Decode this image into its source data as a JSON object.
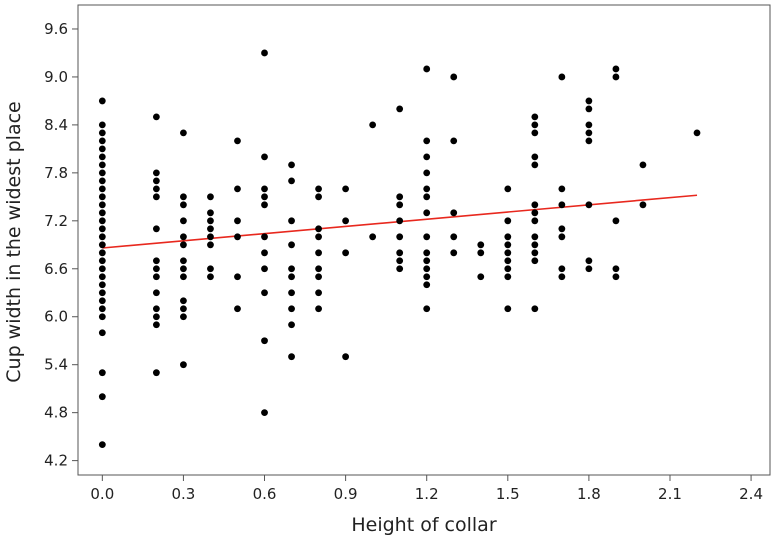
{
  "chart_data": {
    "type": "scatter",
    "title": "",
    "xlabel": "Height of collar",
    "ylabel": "Cup width in the widest place",
    "xlim": [
      -0.09,
      2.47
    ],
    "ylim": [
      4.02,
      9.9
    ],
    "xticks": [
      0.0,
      0.3,
      0.6,
      0.9,
      1.2,
      1.5,
      1.8,
      2.1,
      2.4
    ],
    "yticks": [
      4.2,
      4.8,
      5.4,
      6.0,
      6.6,
      7.2,
      7.8,
      8.4,
      9.0,
      9.6
    ],
    "xtick_labels": [
      "0.0",
      "0.3",
      "0.6",
      "0.9",
      "1.2",
      "1.5",
      "1.8",
      "2.1",
      "2.4"
    ],
    "ytick_labels": [
      "4.2",
      "4.8",
      "5.4",
      "6.0",
      "6.6",
      "7.2",
      "7.8",
      "8.4",
      "9.0",
      "9.6"
    ],
    "grid": false,
    "legend": "none",
    "point_color": "#000000",
    "series": [
      {
        "points": [
          [
            0.0,
            8.7
          ],
          [
            0.0,
            8.4
          ],
          [
            0.0,
            8.3
          ],
          [
            0.0,
            8.2
          ],
          [
            0.0,
            8.1
          ],
          [
            0.0,
            8.0
          ],
          [
            0.0,
            7.9
          ],
          [
            0.0,
            7.8
          ],
          [
            0.0,
            7.7
          ],
          [
            0.0,
            7.6
          ],
          [
            0.0,
            7.5
          ],
          [
            0.0,
            7.4
          ],
          [
            0.0,
            7.3
          ],
          [
            0.0,
            7.2
          ],
          [
            0.0,
            7.1
          ],
          [
            0.0,
            7.0
          ],
          [
            0.0,
            6.9
          ],
          [
            0.0,
            6.8
          ],
          [
            0.0,
            6.7
          ],
          [
            0.0,
            6.6
          ],
          [
            0.0,
            6.5
          ],
          [
            0.0,
            6.4
          ],
          [
            0.0,
            6.3
          ],
          [
            0.0,
            6.2
          ],
          [
            0.0,
            6.1
          ],
          [
            0.0,
            6.0
          ],
          [
            0.0,
            5.8
          ],
          [
            0.0,
            5.3
          ],
          [
            0.0,
            5.0
          ],
          [
            0.0,
            4.4
          ],
          [
            0.2,
            8.5
          ],
          [
            0.2,
            7.8
          ],
          [
            0.2,
            7.7
          ],
          [
            0.2,
            7.6
          ],
          [
            0.2,
            7.5
          ],
          [
            0.2,
            7.1
          ],
          [
            0.2,
            6.7
          ],
          [
            0.2,
            6.6
          ],
          [
            0.2,
            6.5
          ],
          [
            0.2,
            6.3
          ],
          [
            0.2,
            6.1
          ],
          [
            0.2,
            6.0
          ],
          [
            0.2,
            5.9
          ],
          [
            0.2,
            5.3
          ],
          [
            0.3,
            8.3
          ],
          [
            0.3,
            7.5
          ],
          [
            0.3,
            7.4
          ],
          [
            0.3,
            7.2
          ],
          [
            0.3,
            7.0
          ],
          [
            0.3,
            6.9
          ],
          [
            0.3,
            6.7
          ],
          [
            0.3,
            6.6
          ],
          [
            0.3,
            6.5
          ],
          [
            0.3,
            6.2
          ],
          [
            0.3,
            6.1
          ],
          [
            0.3,
            6.0
          ],
          [
            0.3,
            5.4
          ],
          [
            0.4,
            7.5
          ],
          [
            0.4,
            7.3
          ],
          [
            0.4,
            7.2
          ],
          [
            0.4,
            7.1
          ],
          [
            0.4,
            7.0
          ],
          [
            0.4,
            6.9
          ],
          [
            0.4,
            6.6
          ],
          [
            0.4,
            6.5
          ],
          [
            0.5,
            8.2
          ],
          [
            0.5,
            7.6
          ],
          [
            0.5,
            7.2
          ],
          [
            0.5,
            7.0
          ],
          [
            0.5,
            6.5
          ],
          [
            0.5,
            6.1
          ],
          [
            0.6,
            9.3
          ],
          [
            0.6,
            8.0
          ],
          [
            0.6,
            7.6
          ],
          [
            0.6,
            7.5
          ],
          [
            0.6,
            7.4
          ],
          [
            0.6,
            7.0
          ],
          [
            0.6,
            6.8
          ],
          [
            0.6,
            6.6
          ],
          [
            0.6,
            6.3
          ],
          [
            0.6,
            5.7
          ],
          [
            0.6,
            4.8
          ],
          [
            0.7,
            7.9
          ],
          [
            0.7,
            7.7
          ],
          [
            0.7,
            7.2
          ],
          [
            0.7,
            6.9
          ],
          [
            0.7,
            6.6
          ],
          [
            0.7,
            6.5
          ],
          [
            0.7,
            6.3
          ],
          [
            0.7,
            6.1
          ],
          [
            0.7,
            5.9
          ],
          [
            0.7,
            5.5
          ],
          [
            0.8,
            7.6
          ],
          [
            0.8,
            7.5
          ],
          [
            0.8,
            7.1
          ],
          [
            0.8,
            7.0
          ],
          [
            0.8,
            6.8
          ],
          [
            0.8,
            6.6
          ],
          [
            0.8,
            6.5
          ],
          [
            0.8,
            6.3
          ],
          [
            0.8,
            6.1
          ],
          [
            0.9,
            7.6
          ],
          [
            0.9,
            7.2
          ],
          [
            0.9,
            6.8
          ],
          [
            0.9,
            5.5
          ],
          [
            1.0,
            8.4
          ],
          [
            1.0,
            7.0
          ],
          [
            1.1,
            8.6
          ],
          [
            1.1,
            7.5
          ],
          [
            1.1,
            7.4
          ],
          [
            1.1,
            7.2
          ],
          [
            1.1,
            7.0
          ],
          [
            1.1,
            6.8
          ],
          [
            1.1,
            6.7
          ],
          [
            1.1,
            6.6
          ],
          [
            1.2,
            9.1
          ],
          [
            1.2,
            8.2
          ],
          [
            1.2,
            8.0
          ],
          [
            1.2,
            7.8
          ],
          [
            1.2,
            7.6
          ],
          [
            1.2,
            7.5
          ],
          [
            1.2,
            7.3
          ],
          [
            1.2,
            7.0
          ],
          [
            1.2,
            6.8
          ],
          [
            1.2,
            6.7
          ],
          [
            1.2,
            6.6
          ],
          [
            1.2,
            6.5
          ],
          [
            1.2,
            6.4
          ],
          [
            1.2,
            6.1
          ],
          [
            1.3,
            9.0
          ],
          [
            1.3,
            8.2
          ],
          [
            1.3,
            7.3
          ],
          [
            1.3,
            7.0
          ],
          [
            1.3,
            6.8
          ],
          [
            1.4,
            6.9
          ],
          [
            1.4,
            6.8
          ],
          [
            1.4,
            6.5
          ],
          [
            1.5,
            7.6
          ],
          [
            1.5,
            7.2
          ],
          [
            1.5,
            7.0
          ],
          [
            1.5,
            6.9
          ],
          [
            1.5,
            6.8
          ],
          [
            1.5,
            6.7
          ],
          [
            1.5,
            6.6
          ],
          [
            1.5,
            6.5
          ],
          [
            1.5,
            6.1
          ],
          [
            1.6,
            8.5
          ],
          [
            1.6,
            8.4
          ],
          [
            1.6,
            8.3
          ],
          [
            1.6,
            8.0
          ],
          [
            1.6,
            7.9
          ],
          [
            1.6,
            7.4
          ],
          [
            1.6,
            7.3
          ],
          [
            1.6,
            7.2
          ],
          [
            1.6,
            7.0
          ],
          [
            1.6,
            6.9
          ],
          [
            1.6,
            6.8
          ],
          [
            1.6,
            6.7
          ],
          [
            1.6,
            6.1
          ],
          [
            1.7,
            9.0
          ],
          [
            1.7,
            7.6
          ],
          [
            1.7,
            7.4
          ],
          [
            1.7,
            7.1
          ],
          [
            1.7,
            7.0
          ],
          [
            1.7,
            6.6
          ],
          [
            1.7,
            6.5
          ],
          [
            1.8,
            8.7
          ],
          [
            1.8,
            8.6
          ],
          [
            1.8,
            8.4
          ],
          [
            1.8,
            8.3
          ],
          [
            1.8,
            8.2
          ],
          [
            1.8,
            7.4
          ],
          [
            1.8,
            6.7
          ],
          [
            1.8,
            6.6
          ],
          [
            1.9,
            9.1
          ],
          [
            1.9,
            9.0
          ],
          [
            1.9,
            7.2
          ],
          [
            1.9,
            6.6
          ],
          [
            1.9,
            6.5
          ],
          [
            2.0,
            7.9
          ],
          [
            2.0,
            7.4
          ],
          [
            2.2,
            8.3
          ]
        ]
      }
    ],
    "fit_line": {
      "color": "#e8281e",
      "x": [
        0.0,
        2.2
      ],
      "y": [
        6.86,
        7.52
      ]
    }
  }
}
